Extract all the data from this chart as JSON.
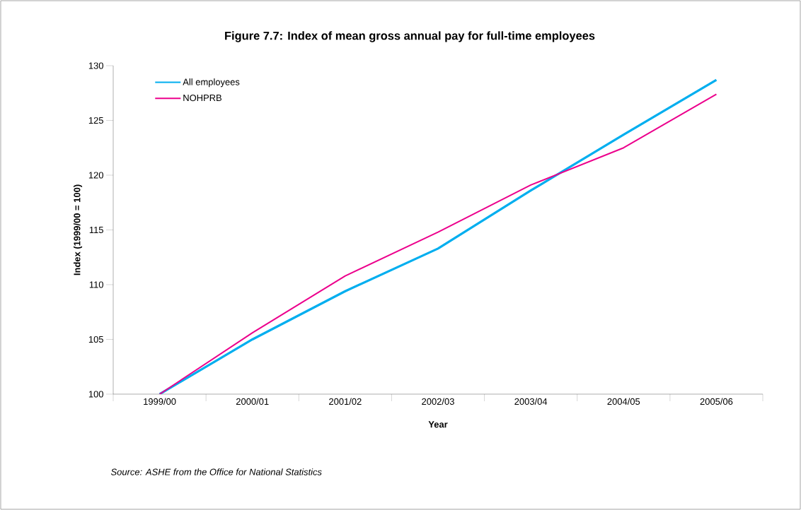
{
  "chart_data": {
    "type": "line",
    "title": "Figure 7.7: Index of mean gross annual pay for full-time employees",
    "xlabel": "Year",
    "ylabel": "Index (1999/00 = 100)",
    "categories": [
      "1999/00",
      "2000/01",
      "2001/02",
      "2002/03",
      "2003/04",
      "2004/05",
      "2005/06"
    ],
    "series": [
      {
        "name": "All employees",
        "color": "#00aeef",
        "values": [
          100,
          105.0,
          109.4,
          113.3,
          118.6,
          123.7,
          128.7
        ]
      },
      {
        "name": "NOHPRB",
        "color": "#ec008c",
        "values": [
          100,
          105.6,
          110.8,
          114.8,
          119.1,
          122.5,
          127.4
        ]
      }
    ],
    "ylim": [
      100,
      130
    ],
    "yticks": [
      100,
      105,
      110,
      115,
      120,
      125,
      130
    ],
    "legend": "top left",
    "grid": false,
    "marker": "none",
    "line_style": "solid",
    "annotations": [
      "Source: ASHE from the Office for National Statistics"
    ]
  }
}
